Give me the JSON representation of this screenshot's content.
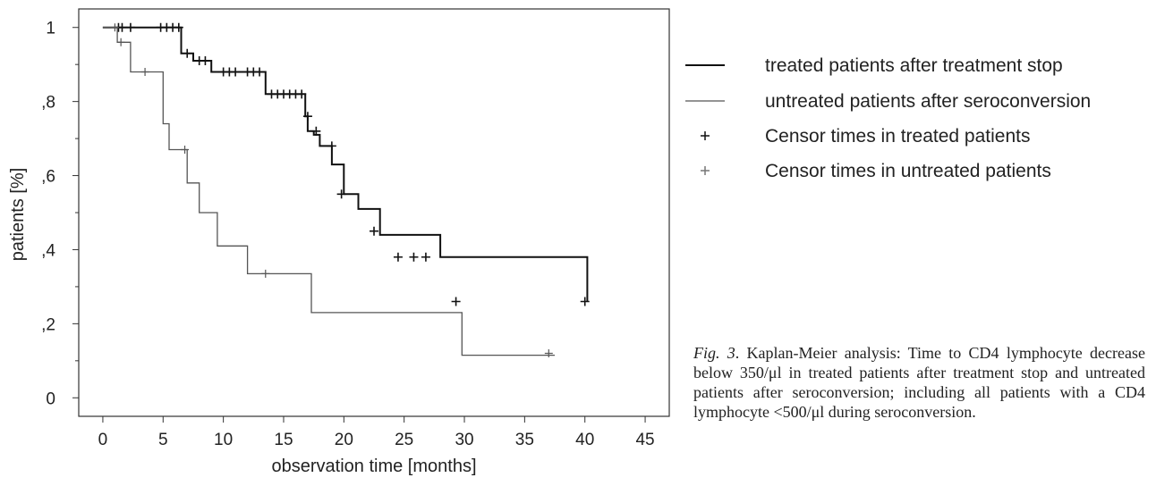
{
  "chart_data": {
    "type": "line",
    "subtype": "kaplan-meier-step",
    "xlabel": "observation time [months]",
    "ylabel": "patients [%]",
    "xlim": [
      -2,
      47
    ],
    "ylim": [
      -0.05,
      1.05
    ],
    "xticks": [
      0,
      5,
      10,
      15,
      20,
      25,
      30,
      35,
      40,
      45
    ],
    "xtick_labels": [
      "0",
      "5",
      "10",
      "15",
      "20",
      "25",
      "30",
      "35",
      "40",
      "45"
    ],
    "yticks": [
      0,
      0.2,
      0.4,
      0.6,
      0.8,
      1.0
    ],
    "ytick_labels": [
      "0",
      ",2",
      ",4",
      ",6",
      ",8",
      "1"
    ],
    "y_minor_ticks": [
      0.1,
      0.3,
      0.5,
      0.7,
      0.9
    ],
    "grid": false,
    "legend_position": "right",
    "series": [
      {
        "name": "treated patients after treatment stop",
        "color": "#111111",
        "step_x": [
          0,
          6.5,
          7.5,
          9.0,
          13.5,
          16.8,
          17.0,
          17.5,
          18.0,
          19.0,
          20.0,
          21.2,
          23.0,
          28.0,
          40.2
        ],
        "step_y": [
          1.0,
          0.93,
          0.91,
          0.88,
          0.82,
          0.76,
          0.72,
          0.71,
          0.68,
          0.63,
          0.55,
          0.51,
          0.44,
          0.38,
          0.26
        ],
        "censor_x": [
          1.3,
          1.6,
          2.3,
          4.8,
          5.3,
          5.8,
          6.3,
          7.0,
          8.0,
          8.5,
          10.0,
          10.5,
          11.0,
          12.0,
          12.5,
          13.0,
          14.0,
          14.5,
          15.0,
          15.5,
          16.0,
          16.5,
          17.0,
          17.7,
          19.0,
          19.8,
          22.5,
          24.5,
          25.8,
          26.8,
          29.3,
          40.0
        ],
        "censor_y": [
          1.0,
          1.0,
          1.0,
          1.0,
          1.0,
          1.0,
          1.0,
          0.93,
          0.91,
          0.91,
          0.88,
          0.88,
          0.88,
          0.88,
          0.88,
          0.88,
          0.82,
          0.82,
          0.82,
          0.82,
          0.82,
          0.82,
          0.76,
          0.72,
          0.68,
          0.55,
          0.45,
          0.38,
          0.38,
          0.38,
          0.26,
          0.26
        ]
      },
      {
        "name": "untreated patients after seroconversion",
        "color": "#555555",
        "step_x": [
          0,
          1.2,
          1.8,
          2.3,
          4.2,
          5.0,
          5.5,
          7.0,
          8.0,
          9.5,
          12.0,
          17.3,
          29.8,
          37.5
        ],
        "step_y": [
          1.0,
          0.96,
          0.96,
          0.88,
          0.88,
          0.74,
          0.67,
          0.58,
          0.5,
          0.41,
          0.335,
          0.23,
          0.115,
          0.115
        ],
        "censor_x": [
          1.0,
          1.5,
          3.5,
          6.8,
          13.5,
          37.0
        ],
        "censor_y": [
          1.0,
          0.96,
          0.88,
          0.67,
          0.335,
          0.12
        ]
      }
    ],
    "legend": {
      "entries": [
        {
          "label": "treated patients after treatment stop",
          "symbol": "line",
          "color": "#111111"
        },
        {
          "label": "untreated patients after seroconversion",
          "symbol": "line",
          "color": "#555555"
        },
        {
          "label": "Censor times in treated patients",
          "symbol": "plus",
          "color": "#111111"
        },
        {
          "label": "Censor times in untreated patients",
          "symbol": "plus",
          "color": "#777777"
        }
      ]
    }
  },
  "caption": {
    "label": "Fig. 3",
    "text": ". Kaplan-Meier analysis: Time to CD4 lymphocyte decrease below 350/μl in treated patients after treatment stop and untreated patients after seroconversion; including all patients with a CD4 lymphocyte <500/μl during seroconversion."
  }
}
